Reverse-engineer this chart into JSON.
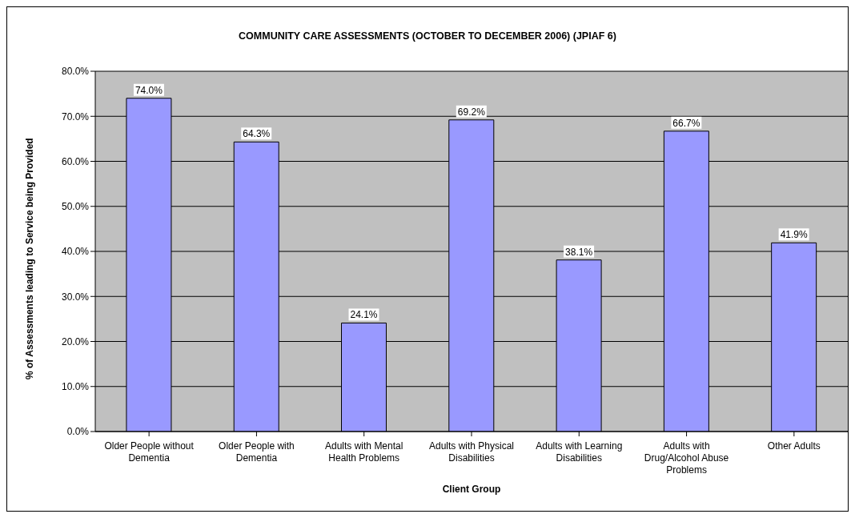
{
  "chart_data": {
    "type": "bar",
    "title": "COMMUNITY CARE ASSESSMENTS (OCTOBER TO DECEMBER 2006) (JPIAF 6)",
    "xlabel": "Client Group",
    "ylabel": "% of Assessments leading to Service being Provided",
    "categories": [
      "Older People without Dementia",
      "Older People with Dementia",
      "Adults with Mental Health Problems",
      "Adults with Physical Disabilities",
      "Adults with Learning Disabilities",
      "Adults with Drug/Alcohol Abuse Problems",
      "Other Adults"
    ],
    "values": [
      74.0,
      64.3,
      24.1,
      69.2,
      38.1,
      66.7,
      41.9
    ],
    "value_labels": [
      "74.0%",
      "64.3%",
      "24.1%",
      "69.2%",
      "38.1%",
      "66.7%",
      "41.9%"
    ],
    "color": "#9999ff",
    "ylim": [
      0,
      80
    ],
    "yticks": [
      {
        "value": 0,
        "label": "0.0%"
      },
      {
        "value": 10,
        "label": "10.0%"
      },
      {
        "value": 20,
        "label": "20.0%"
      },
      {
        "value": 30,
        "label": "30.0%"
      },
      {
        "value": 40,
        "label": "40.0%"
      },
      {
        "value": 50,
        "label": "50.0%"
      },
      {
        "value": 60,
        "label": "60.0%"
      },
      {
        "value": 70,
        "label": "70.0%"
      },
      {
        "value": 80,
        "label": "80.0%"
      }
    ],
    "grid": "y",
    "legend": false
  }
}
